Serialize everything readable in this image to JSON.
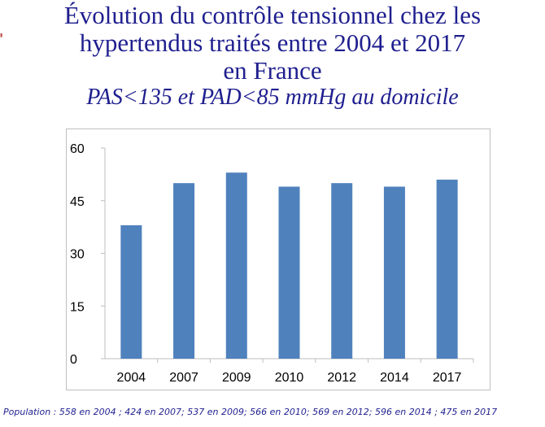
{
  "slide": {
    "title_lines": [
      "Évolution du contrôle tensionnel chez les",
      "hypertendus traités entre 2004 et 2017",
      "en France"
    ],
    "subtitle": "PAS<135 et PAD<85 mmHg au domicile",
    "footer": "Population : 558 en 2004 ; 424 en 2007; 537 en 2009; 566 en 2010; 569 en 2012; 596 en 2014 ; 475 en 2017"
  },
  "chart_data": {
    "type": "bar",
    "title": "",
    "xlabel": "",
    "ylabel": "",
    "categories": [
      "2004",
      "2007",
      "2009",
      "2010",
      "2012",
      "2014",
      "2017"
    ],
    "values": [
      38,
      50,
      53,
      49,
      50,
      49,
      51
    ],
    "ylim": [
      0,
      60
    ],
    "yticks": [
      0,
      15,
      30,
      45,
      60
    ],
    "grid": false,
    "legend": "none",
    "bar_color": "#4f81bd",
    "axis_color": "#bfbfbf",
    "text_color": "#000000"
  }
}
